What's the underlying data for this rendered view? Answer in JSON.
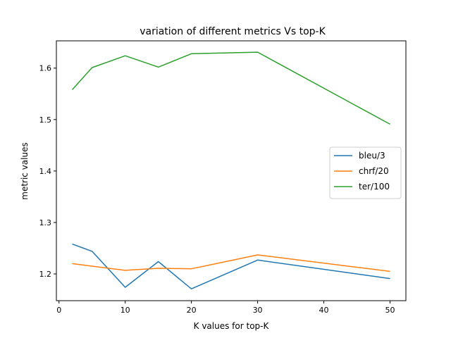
{
  "chart_data": {
    "type": "line",
    "title": "variation of different metrics Vs top-K",
    "xlabel": "K values for top-K",
    "ylabel": "metric values",
    "x": [
      2,
      5,
      10,
      15,
      20,
      30,
      50
    ],
    "xlim": [
      -0.4,
      52.4
    ],
    "ylim": [
      1.148,
      1.653
    ],
    "xticks": [
      0,
      10,
      20,
      30,
      40,
      50
    ],
    "yticks": [
      1.2,
      1.3,
      1.4,
      1.5,
      1.6
    ],
    "xtick_labels": [
      "0",
      "10",
      "20",
      "30",
      "40",
      "50"
    ],
    "ytick_labels": [
      "1.2",
      "1.3",
      "1.4",
      "1.5",
      "1.6"
    ],
    "grid": false,
    "legend_position": "center-right",
    "series": [
      {
        "name": "bleu/3",
        "color": "#1f77b4",
        "values": [
          1.258,
          1.244,
          1.174,
          1.224,
          1.171,
          1.227,
          1.191
        ]
      },
      {
        "name": "chrf/20",
        "color": "#ff7f0e",
        "values": [
          1.22,
          1.215,
          1.207,
          1.211,
          1.21,
          1.237,
          1.205
        ]
      },
      {
        "name": "ter/100",
        "color": "#2ca02c",
        "values": [
          1.558,
          1.601,
          1.624,
          1.602,
          1.628,
          1.631,
          1.491
        ]
      }
    ]
  }
}
